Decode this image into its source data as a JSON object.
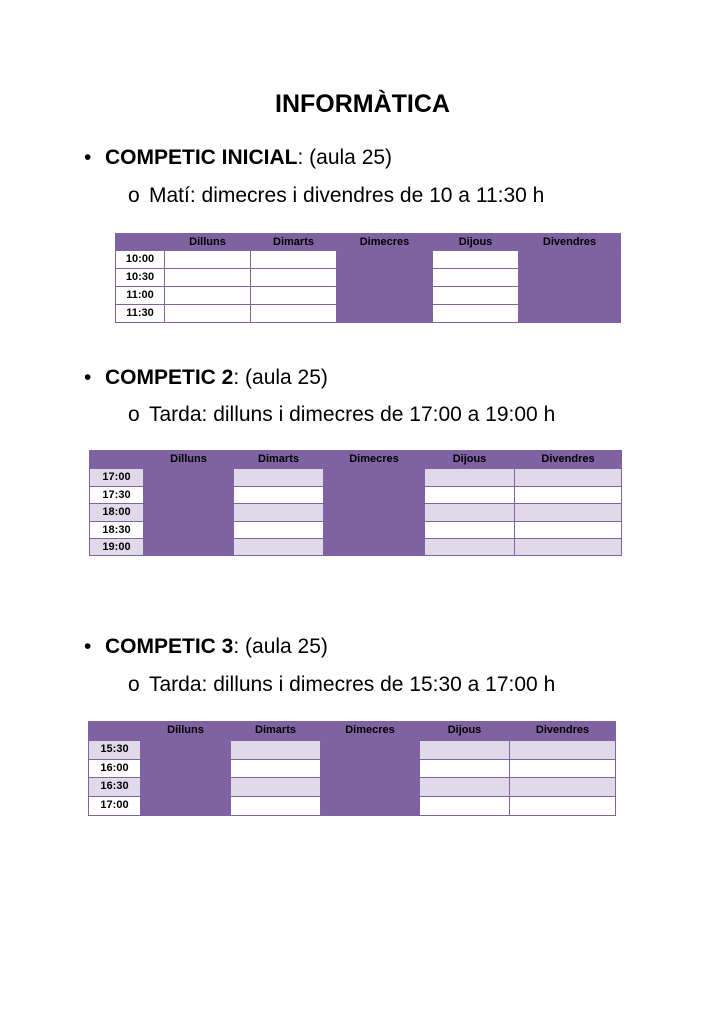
{
  "title": "INFORMÀTICA",
  "sections": [
    {
      "heading_bold": "COMPETIC INICIAL",
      "heading_rest": ": (aula 25)",
      "sub_bullet": "Matí: dimecres i divendres de 10 a 11:30 h",
      "table": {
        "days": [
          "Dilluns",
          "Dimarts",
          "Dimecres",
          "Dijous",
          "Divendres"
        ],
        "times": [
          "10:00",
          "10:30",
          "11:00",
          "11:30"
        ]
      }
    },
    {
      "heading_bold": "COMPETIC 2",
      "heading_rest": ": (aula 25)",
      "sub_bullet": "Tarda: dilluns i dimecres de 17:00 a 19:00 h",
      "table": {
        "days": [
          "Dilluns",
          "Dimarts",
          "Dimecres",
          "Dijous",
          "Divendres"
        ],
        "times": [
          "17:00",
          "17:30",
          "18:00",
          "18:30",
          "19:00"
        ]
      }
    },
    {
      "heading_bold": "COMPETIC 3",
      "heading_rest": ": (aula 25)",
      "sub_bullet": "Tarda: dilluns i dimecres de 15:30 a 17:00 h",
      "table": {
        "days": [
          "Dilluns",
          "Dimarts",
          "Dimecres",
          "Dijous",
          "Divendres"
        ],
        "times": [
          "15:30",
          "16:00",
          "16:30",
          "17:00"
        ]
      }
    }
  ]
}
